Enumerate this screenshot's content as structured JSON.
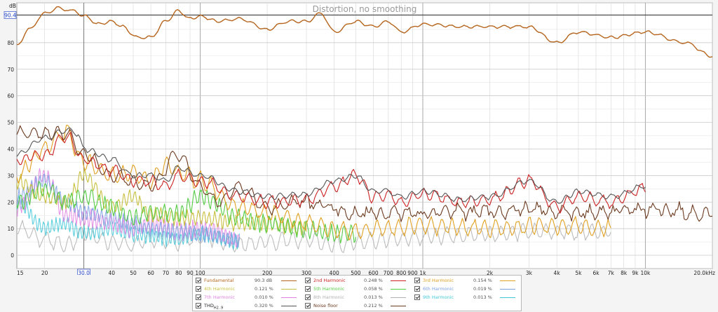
{
  "chart_data": {
    "type": "line",
    "title": "Distortion, no smoothing",
    "ylabel": "dB",
    "xlabel": "",
    "x_scale": "log",
    "xlim": [
      15,
      20000
    ],
    "ylim": [
      -5,
      95
    ],
    "grid": true,
    "cursor_y_label": "90.4",
    "cursor_x_label": "30.0",
    "x_tick_labels": [
      {
        "v": 15,
        "t": "15"
      },
      {
        "v": 20,
        "t": "20"
      },
      {
        "v": 30,
        "t": "30.0"
      },
      {
        "v": 40,
        "t": "40"
      },
      {
        "v": 50,
        "t": "50"
      },
      {
        "v": 60,
        "t": "60"
      },
      {
        "v": 70,
        "t": "70"
      },
      {
        "v": 80,
        "t": "80"
      },
      {
        "v": 90,
        "t": "90"
      },
      {
        "v": 100,
        "t": "100"
      },
      {
        "v": 200,
        "t": "200"
      },
      {
        "v": 300,
        "t": "300"
      },
      {
        "v": 400,
        "t": "400"
      },
      {
        "v": 500,
        "t": "500"
      },
      {
        "v": 600,
        "t": "600"
      },
      {
        "v": 700,
        "t": "700"
      },
      {
        "v": 800,
        "t": "800"
      },
      {
        "v": 900,
        "t": "900"
      },
      {
        "v": 1000,
        "t": "1k"
      },
      {
        "v": 2000,
        "t": "2k"
      },
      {
        "v": 3000,
        "t": "3k"
      },
      {
        "v": 4000,
        "t": "4k"
      },
      {
        "v": 5000,
        "t": "5k"
      },
      {
        "v": 6000,
        "t": "6k"
      },
      {
        "v": 7000,
        "t": "7k"
      },
      {
        "v": 8000,
        "t": "8k"
      },
      {
        "v": 9000,
        "t": "9k"
      },
      {
        "v": 10000,
        "t": "10k"
      },
      {
        "v": 20000,
        "t": "20.0kHz"
      }
    ],
    "y_ticks": [
      0,
      10,
      20,
      30,
      40,
      50,
      60,
      70,
      80
    ],
    "series": [
      {
        "name": "Fundamental",
        "value": "90.3 dB",
        "color": "#b5651d",
        "x": [
          15,
          17,
          20,
          23,
          27,
          30,
          35,
          40,
          45,
          52,
          60,
          70,
          80,
          90,
          100,
          120,
          150,
          200,
          250,
          300,
          350,
          400,
          500,
          600,
          700,
          800,
          1000,
          1500,
          2000,
          3000,
          4000,
          5000,
          7000,
          10000,
          15000,
          20000
        ],
        "values": [
          79,
          85,
          91,
          93,
          92,
          90,
          87,
          88,
          86,
          82,
          82,
          88,
          92,
          89,
          90,
          88,
          89,
          85,
          88,
          88,
          91,
          84,
          88,
          86,
          88,
          84,
          87,
          86,
          86,
          86,
          80,
          84,
          82,
          84,
          80,
          75
        ]
      },
      {
        "name": "2nd Harmonic",
        "value": "0.248 %",
        "color": "#cc2222",
        "x": [
          15,
          20,
          25,
          30,
          40,
          50,
          60,
          70,
          80,
          100,
          150,
          200,
          300,
          400,
          500,
          600,
          700,
          800,
          1000,
          1500,
          2000,
          3000,
          4000,
          5000,
          7000,
          10000
        ],
        "values": [
          36,
          38,
          45,
          36,
          32,
          28,
          28,
          26,
          30,
          28,
          22,
          20,
          21,
          26,
          30,
          22,
          23,
          20,
          23,
          20,
          21,
          28,
          18,
          22,
          20,
          25
        ]
      },
      {
        "name": "3rd Harmonic",
        "value": "0.154 %",
        "color": "#e0a020",
        "x": [
          15,
          20,
          25,
          30,
          40,
          50,
          60,
          70,
          80,
          100,
          150,
          200,
          300,
          400,
          500,
          700,
          1000,
          2000,
          3000,
          5000,
          7000
        ],
        "values": [
          30,
          40,
          46,
          35,
          30,
          31,
          28,
          34,
          31,
          28,
          18,
          16,
          12,
          10,
          9,
          10,
          11,
          10,
          11,
          11,
          10
        ]
      },
      {
        "name": "4th Harmonic",
        "value": "0.121 %",
        "color": "#c8c040",
        "x": [
          15,
          20,
          25,
          30,
          40,
          50,
          60,
          80,
          100,
          150,
          200,
          300
        ],
        "values": [
          28,
          22,
          20,
          30,
          18,
          22,
          15,
          14,
          14,
          12,
          12,
          10
        ]
      },
      {
        "name": "5th Harmonic",
        "value": "0.058 %",
        "color": "#55cc44",
        "x": [
          15,
          20,
          25,
          30,
          40,
          50,
          60,
          80,
          100,
          150,
          200,
          300,
          400,
          500
        ],
        "values": [
          20,
          25,
          20,
          22,
          18,
          14,
          16,
          16,
          22,
          14,
          12,
          10,
          8,
          8
        ]
      },
      {
        "name": "6th Harmonic",
        "value": "0.019 %",
        "color": "#7aa0e0",
        "x": [
          15,
          20,
          25,
          30,
          40,
          50,
          60,
          80,
          100,
          150
        ],
        "values": [
          22,
          28,
          20,
          16,
          14,
          12,
          10,
          9,
          8,
          6
        ]
      },
      {
        "name": "7th Harmonic",
        "value": "0.010 %",
        "color": "#e080e0",
        "x": [
          15,
          20,
          25,
          30,
          40,
          50,
          60,
          80,
          100,
          150
        ],
        "values": [
          18,
          30,
          15,
          14,
          12,
          10,
          12,
          9,
          10,
          6
        ]
      },
      {
        "name": "8th Harmonic",
        "value": "0.013 %",
        "color": "#b0b0b0",
        "x": [
          15,
          20,
          25,
          30,
          40,
          50,
          60,
          80,
          100,
          150,
          200,
          300,
          400,
          500,
          700,
          1000,
          2000,
          3000,
          5000,
          7000
        ],
        "values": [
          10,
          6,
          4,
          8,
          5,
          4,
          6,
          5,
          7,
          4,
          5,
          6,
          4,
          5,
          6,
          7,
          8,
          9,
          9,
          9
        ]
      },
      {
        "name": "9th Harmonic",
        "value": "0.013 %",
        "color": "#40c8d8",
        "x": [
          15,
          20,
          25,
          30,
          40,
          50,
          60,
          80,
          100,
          150
        ],
        "values": [
          20,
          10,
          12,
          8,
          10,
          8,
          7,
          6,
          8,
          5
        ]
      },
      {
        "name": "THD",
        "value": "0.320 %",
        "color": "#555555",
        "x": [
          15,
          20,
          25,
          28,
          30,
          40,
          50,
          60,
          70,
          80,
          100,
          150,
          200,
          300,
          400,
          500,
          600,
          700,
          800,
          1000,
          1500,
          2000,
          3000,
          4000,
          5000,
          7000,
          10000
        ],
        "values": [
          38,
          44,
          47,
          46,
          40,
          36,
          30,
          30,
          28,
          33,
          30,
          24,
          22,
          23,
          28,
          30,
          24,
          24,
          22,
          24,
          21,
          22,
          28,
          20,
          24,
          22,
          26
        ]
      },
      {
        "name": "Noise floor",
        "value": "0.212 %",
        "color": "#6b3a1f",
        "x": [
          15,
          20,
          25,
          30,
          40,
          60,
          80,
          100,
          120,
          150,
          200,
          300,
          500,
          700,
          1000,
          2000,
          3000,
          5000,
          10000,
          20000
        ],
        "values": [
          46,
          46,
          46,
          38,
          30,
          26,
          38,
          26,
          20,
          26,
          18,
          20,
          16,
          16,
          16,
          16,
          17,
          16,
          17,
          16
        ]
      }
    ]
  },
  "legend": {
    "thd_sub": "H2..9",
    "thd_main": "THD"
  }
}
